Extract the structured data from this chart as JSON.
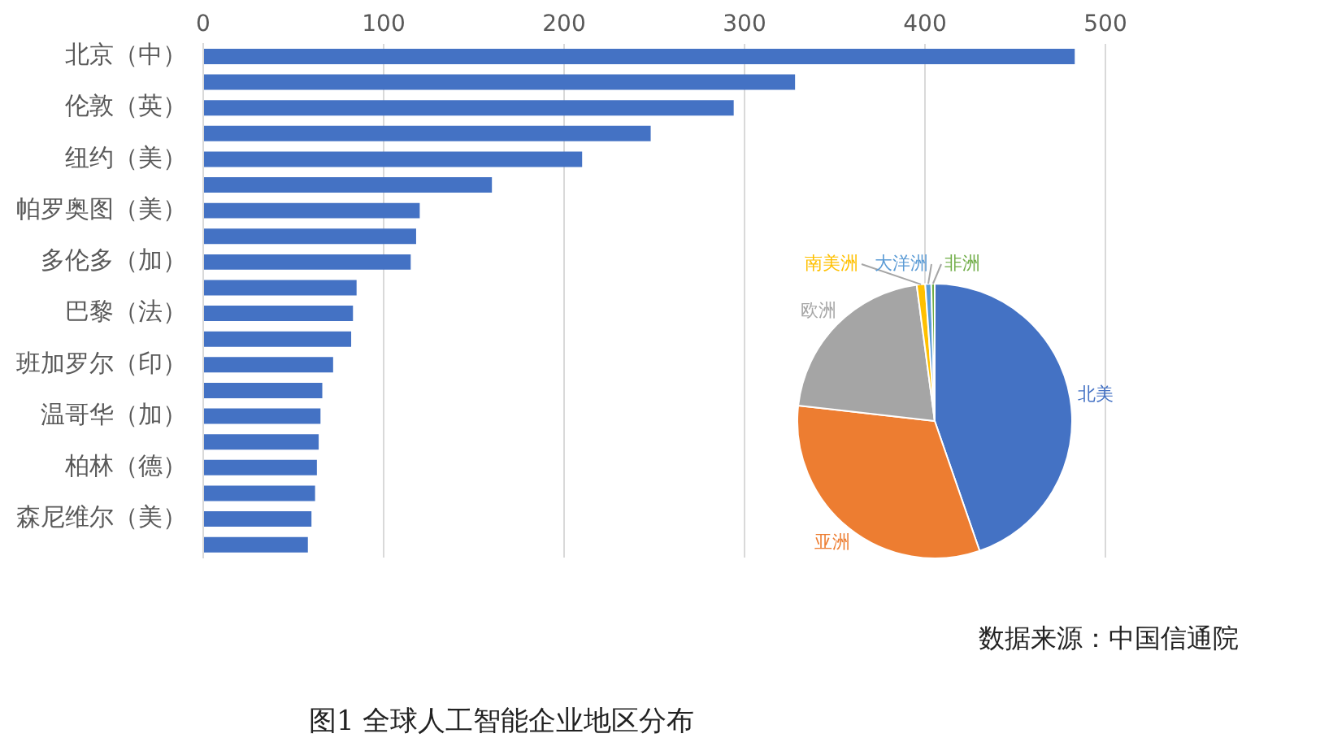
{
  "chart_data": [
    {
      "type": "bar",
      "orientation": "horizontal",
      "title": "图1 全球人工智能企业地区分布",
      "annotations": [
        "数据来源：中国信通院"
      ],
      "categories": [
        "北京（中）",
        null,
        "伦敦（英）",
        null,
        "纽约（美）",
        null,
        "帕罗奥图（美）",
        null,
        "多伦多（加）",
        null,
        "巴黎（法）",
        null,
        "班加罗尔（印）",
        null,
        "温哥华（加）",
        null,
        "柏林（德）",
        null,
        "森尼维尔（美）",
        null
      ],
      "values": [
        483,
        328,
        294,
        248,
        210,
        160,
        120,
        118,
        115,
        85,
        83,
        82,
        72,
        66,
        65,
        64,
        63,
        62,
        60,
        58
      ],
      "color": "#4472c4",
      "xlim": [
        0,
        500
      ],
      "xticks": [
        0,
        100,
        200,
        300,
        400,
        500
      ],
      "grid": "x"
    },
    {
      "type": "pie",
      "categories": [
        "北美",
        "亚洲",
        "欧洲",
        "南美洲",
        "大洋洲",
        "非洲"
      ],
      "values": [
        44.7,
        32.1,
        21.1,
        1.0,
        0.7,
        0.4
      ],
      "colors": [
        "#4472c4",
        "#ed7d31",
        "#a5a5a5",
        "#ffc000",
        "#5b9bd5",
        "#70ad47"
      ]
    }
  ]
}
